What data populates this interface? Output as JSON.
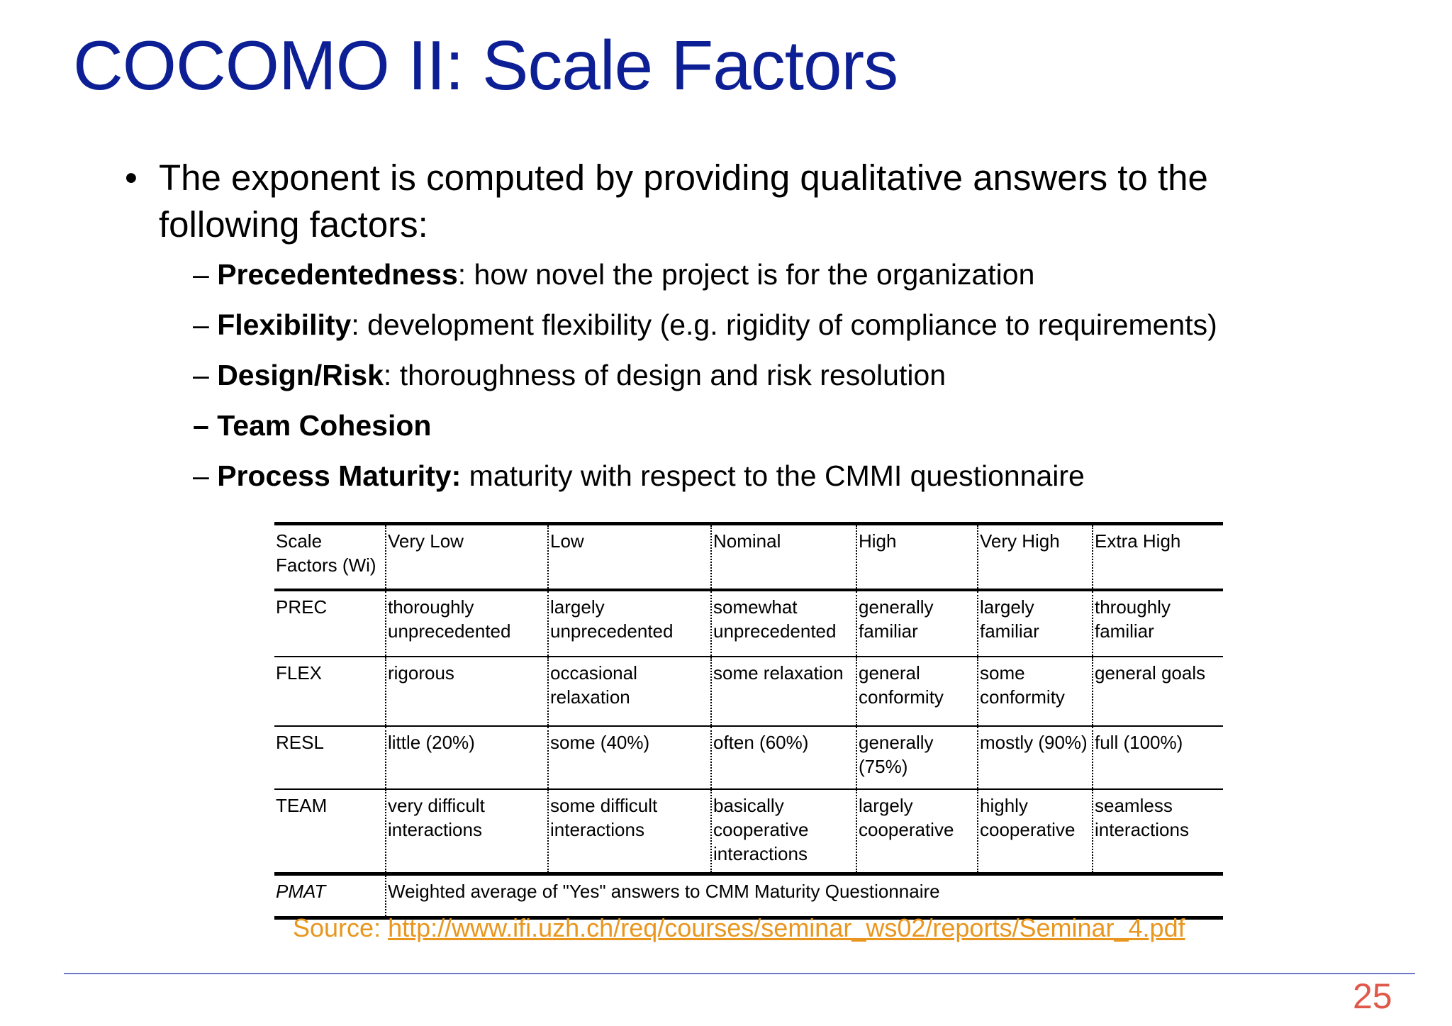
{
  "slide": {
    "title": "COCOMO II: Scale Factors",
    "bullet": {
      "marker": "•",
      "text": "The exponent is computed by providing qualitative answers to the following factors:"
    },
    "subs": [
      {
        "dash": "– ",
        "term": "Precedentedness",
        "desc": ": how novel the project is for the organization"
      },
      {
        "dash": "– ",
        "term": "Flexibility",
        "desc": ": development flexibility (e.g. rigidity of compliance to requirements)"
      },
      {
        "dash": "– ",
        "term": "Design/Risk",
        "desc": ": thoroughness of design and risk resolution"
      },
      {
        "dash": "– ",
        "term": "Team Cohesion",
        "desc": ""
      },
      {
        "dash": "– ",
        "term": "Process Maturity:",
        "desc": " maturity with respect to the CMMI questionnaire"
      }
    ],
    "table": {
      "header": [
        "Scale Factors (Wi)",
        "Very Low",
        "Low",
        "Nominal",
        "High",
        "Very High",
        "Extra High"
      ],
      "rows": [
        [
          "PREC",
          "thoroughly unprecedented",
          "largely unprecedented",
          "somewhat unprecedented",
          "generally familiar",
          "largely familiar",
          "throughly familiar"
        ],
        [
          "FLEX",
          "rigorous",
          "occasional relaxation",
          "some relaxation",
          "general conformity",
          "some conformity",
          "general goals"
        ],
        [
          "RESL",
          "little (20%)",
          "some (40%)",
          "often (60%)",
          "generally (75%)",
          "mostly (90%)",
          "full (100%)"
        ],
        [
          "TEAM",
          "very difficult interactions",
          "some difficult interactions",
          "basically cooperative interactions",
          "largely cooperative",
          "highly cooperative",
          "seamless interactions"
        ]
      ],
      "pmat": {
        "label": "PMAT",
        "text": "Weighted average of \"Yes\" answers to CMM Maturity Questionnaire"
      }
    },
    "source": {
      "prefix": "Source: ",
      "url": "http://www.ifi.uzh.ch/req/courses/seminar_ws02/reports/Seminar_4.pdf"
    },
    "page_number": "25",
    "colors": {
      "title": "#0d1f95",
      "source": "#e8961e",
      "rule": "#6f78c8",
      "page_number": "#e0584a"
    }
  }
}
